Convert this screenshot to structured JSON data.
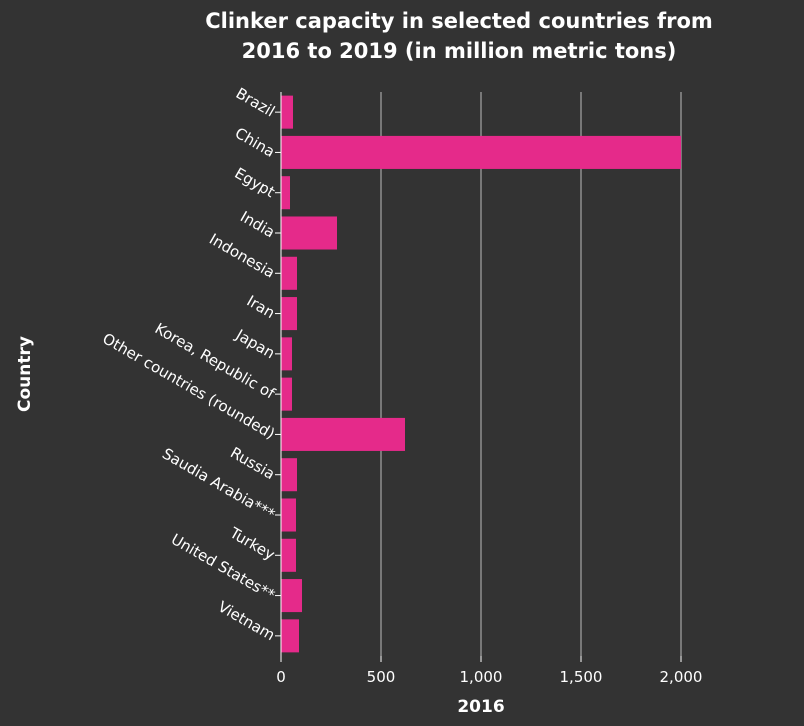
{
  "chart_data": {
    "type": "bar",
    "orientation": "horizontal",
    "title_lines": [
      "Clinker capacity in selected countries from",
      "2016 to 2019 (in million metric tons)"
    ],
    "xlabel": "2016",
    "ylabel": "Country",
    "xlim": [
      0,
      2000
    ],
    "xticks": [
      0,
      500,
      1000,
      1500,
      2000
    ],
    "xtick_labels": [
      "0",
      "500",
      "1,000",
      "1,500",
      "2,000"
    ],
    "grid": true,
    "bar_color": "#e52a8a",
    "background": "#333333",
    "categories": [
      "Brazil",
      "China",
      "Egypt",
      "India",
      "Indonesia",
      "Iran",
      "Japan",
      "Korea, Republic of",
      "Other countries (rounded)",
      "Russia",
      "Saudia Arabia***",
      "Turkey",
      "United States**",
      "Vietnam"
    ],
    "values": [
      60,
      2000,
      45,
      280,
      80,
      80,
      55,
      55,
      620,
      80,
      75,
      75,
      105,
      90
    ]
  }
}
